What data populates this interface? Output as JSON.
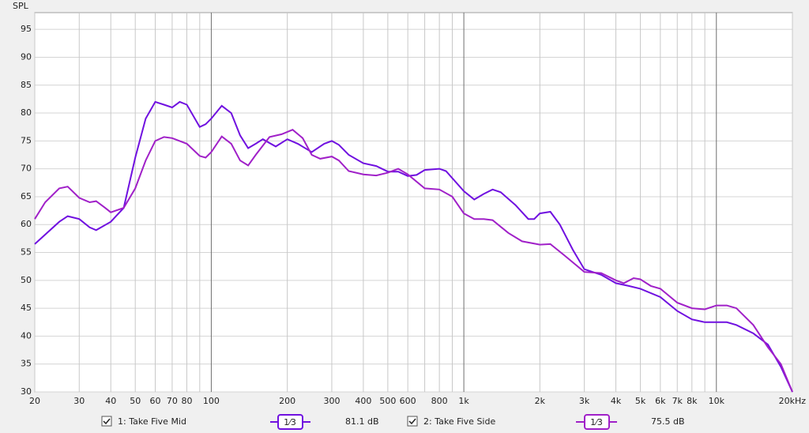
{
  "chart_data": {
    "type": "line",
    "y_axis_label": "SPL",
    "log_x": true,
    "grid": true,
    "xlim": [
      20,
      20000
    ],
    "ylim": [
      30,
      98
    ],
    "xticks": [
      20,
      30,
      40,
      50,
      60,
      70,
      80,
      100,
      200,
      300,
      400,
      500,
      600,
      800,
      {
        "value": 1000,
        "label": "1k"
      },
      {
        "value": 2000,
        "label": "2k"
      },
      {
        "value": 3000,
        "label": "3k"
      },
      {
        "value": 4000,
        "label": "4k"
      },
      {
        "value": 5000,
        "label": "5k"
      },
      {
        "value": 6000,
        "label": "6k"
      },
      {
        "value": 7000,
        "label": "7k"
      },
      {
        "value": 8000,
        "label": "8k"
      },
      {
        "value": 10000,
        "label": "10k"
      },
      {
        "value": 20000,
        "label": "20kHz"
      }
    ],
    "x_grid_unlabeled": [
      90,
      700,
      900,
      9000
    ],
    "yticks": [
      30,
      35,
      40,
      45,
      50,
      55,
      60,
      65,
      70,
      75,
      80,
      85,
      90,
      95
    ],
    "series": [
      {
        "name": "1: Take Five Mid",
        "color": "#7010e0",
        "smoothing": "1⁄3",
        "level": "81.1 dB",
        "x": [
          20,
          25,
          27,
          30,
          33,
          35,
          40,
          45,
          50,
          55,
          60,
          65,
          70,
          75,
          80,
          90,
          95,
          100,
          110,
          120,
          130,
          140,
          150,
          160,
          180,
          200,
          220,
          250,
          280,
          300,
          320,
          350,
          400,
          450,
          500,
          550,
          600,
          650,
          700,
          800,
          850,
          1000,
          1100,
          1200,
          1300,
          1400,
          1600,
          1800,
          1900,
          2000,
          2200,
          2400,
          2700,
          3000,
          3500,
          4000,
          4500,
          5000,
          6000,
          7000,
          8000,
          9000,
          10000,
          11000,
          12000,
          14000,
          16000,
          18000,
          20000
        ],
        "values": [
          56.5,
          60.5,
          61.5,
          61,
          59.5,
          59,
          60.5,
          63,
          72,
          79,
          82,
          81.5,
          81,
          82,
          81.5,
          77.5,
          78,
          79,
          81.3,
          80,
          76,
          73.7,
          74.5,
          75.3,
          74,
          75.3,
          74.5,
          73,
          74.5,
          75,
          74.3,
          72.5,
          71,
          70.5,
          69.5,
          69.5,
          68.7,
          68.9,
          69.8,
          70,
          69.6,
          66,
          64.5,
          65.5,
          66.3,
          65.8,
          63.5,
          61,
          61,
          62,
          62.3,
          60,
          55.5,
          52,
          51,
          49.5,
          49,
          48.5,
          47,
          44.5,
          43,
          42.5,
          42.5,
          42.5,
          42,
          40.5,
          38.5,
          34.5,
          30
        ]
      },
      {
        "name": "2: Take Five Side",
        "color": "#a020c8",
        "smoothing": "1⁄3",
        "level": "75.5 dB",
        "x": [
          20,
          22,
          25,
          27,
          30,
          33,
          35,
          38,
          40,
          45,
          50,
          55,
          60,
          65,
          70,
          80,
          90,
          95,
          100,
          110,
          120,
          130,
          140,
          150,
          170,
          190,
          210,
          230,
          250,
          270,
          300,
          320,
          350,
          400,
          450,
          500,
          550,
          600,
          700,
          800,
          900,
          1000,
          1100,
          1200,
          1300,
          1500,
          1700,
          2000,
          2200,
          2500,
          3000,
          3500,
          4000,
          4300,
          4700,
          5000,
          5500,
          6000,
          7000,
          8000,
          9000,
          10000,
          11000,
          12000,
          14000,
          16000,
          18000,
          20000
        ],
        "values": [
          61,
          64,
          66.5,
          66.8,
          64.8,
          64,
          64.2,
          63,
          62.2,
          63,
          66.5,
          71.5,
          75,
          75.7,
          75.5,
          74.5,
          72.3,
          72,
          73,
          75.8,
          74.5,
          71.5,
          70.6,
          72.5,
          75.7,
          76.2,
          77,
          75.5,
          72.5,
          71.8,
          72.2,
          71.5,
          69.6,
          69,
          68.8,
          69.3,
          70,
          69,
          66.5,
          66.3,
          65,
          62,
          61,
          61,
          60.8,
          58.5,
          57,
          56.4,
          56.5,
          54.5,
          51.5,
          51.3,
          50,
          49.5,
          50.4,
          50.2,
          49,
          48.5,
          46,
          45,
          44.8,
          45.5,
          45.5,
          45,
          42,
          38,
          35,
          30
        ]
      }
    ]
  }
}
